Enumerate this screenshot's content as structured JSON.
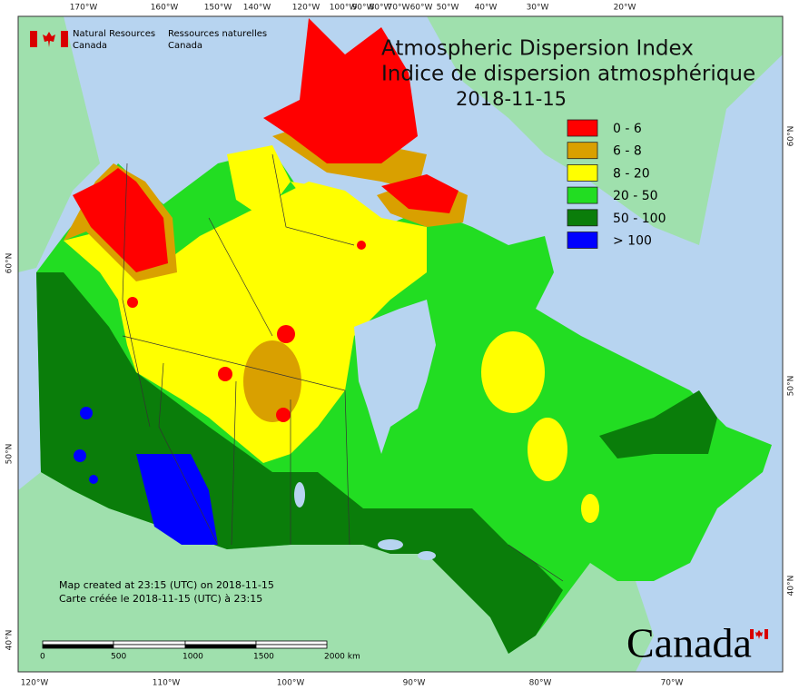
{
  "header": {
    "agency_en": [
      "Natural Resources",
      "Canada"
    ],
    "agency_fr": [
      "Ressources naturelles",
      "Canada"
    ]
  },
  "title": [
    "Atmospheric Dispersion Index",
    "Indice de dispersion atmosphérique",
    "2018-11-15"
  ],
  "legend": [
    {
      "label": "0 - 6",
      "color": "#ff0000"
    },
    {
      "label": "6 - 8",
      "color": "#d9a000"
    },
    {
      "label": "8 - 20",
      "color": "#ffff00"
    },
    {
      "label": "20 - 50",
      "color": "#22dd22"
    },
    {
      "label": "50 - 100",
      "color": "#0a7d0a"
    },
    {
      "label": "> 100",
      "color": "#0000ff"
    }
  ],
  "graticule": {
    "top": [
      "170°W",
      "160°W",
      "150°W",
      "140°W",
      "120°W",
      "100°W",
      "90°W",
      "80°W",
      "70°W",
      "60°W",
      "50°W",
      "40°W",
      "30°W",
      "20°W"
    ],
    "bottom": [
      "120°W",
      "110°W",
      "100°W",
      "90°W",
      "80°W",
      "70°W"
    ],
    "left": [
      "60°N",
      "50°N",
      "40°N"
    ],
    "right": [
      "60°N",
      "50°N",
      "40°N"
    ]
  },
  "notes": [
    "Map created at 23:15 (UTC) on 2018-11-15",
    "Carte créée le 2018-11-15 (UTC) à 23:15"
  ],
  "scale_bar": [
    "0",
    "500",
    "1000",
    "1500",
    "2000 km"
  ],
  "wordmark": "Canada"
}
